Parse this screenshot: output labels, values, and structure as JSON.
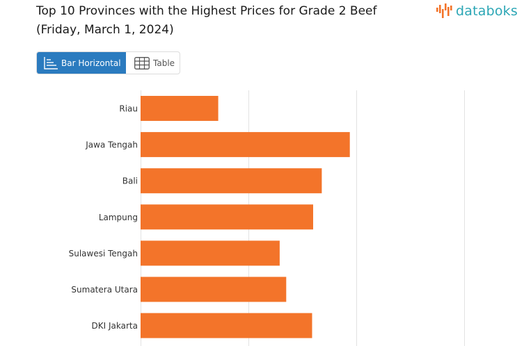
{
  "header": {
    "title_line1": "Top 10 Provinces with the Highest Prices for Grade 2 Beef",
    "title_line2": "(Friday, March 1, 2024)"
  },
  "logo": {
    "text": "databoks",
    "icon": "databoks-bars-logo-icon",
    "color": "#2ba6b5"
  },
  "tabs": [
    {
      "label": "Bar Horizontal",
      "icon": "bar-chart-icon",
      "active": true
    },
    {
      "label": "Table",
      "icon": "table-grid-icon",
      "active": false
    }
  ],
  "chart_data": {
    "type": "bar",
    "orientation": "horizontal",
    "categories": [
      "Riau",
      "Jawa Tengah",
      "Bali",
      "Lampung",
      "Sulawesi Tengah",
      "Sumatera Utara",
      "DKI Jakarta"
    ],
    "values": [
      0.72,
      1.94,
      1.68,
      1.6,
      1.29,
      1.35,
      1.59
    ],
    "xlim": [
      0,
      3
    ],
    "grid": true,
    "bar_color": "#f3742a",
    "title": "",
    "xlabel": "",
    "ylabel": ""
  }
}
